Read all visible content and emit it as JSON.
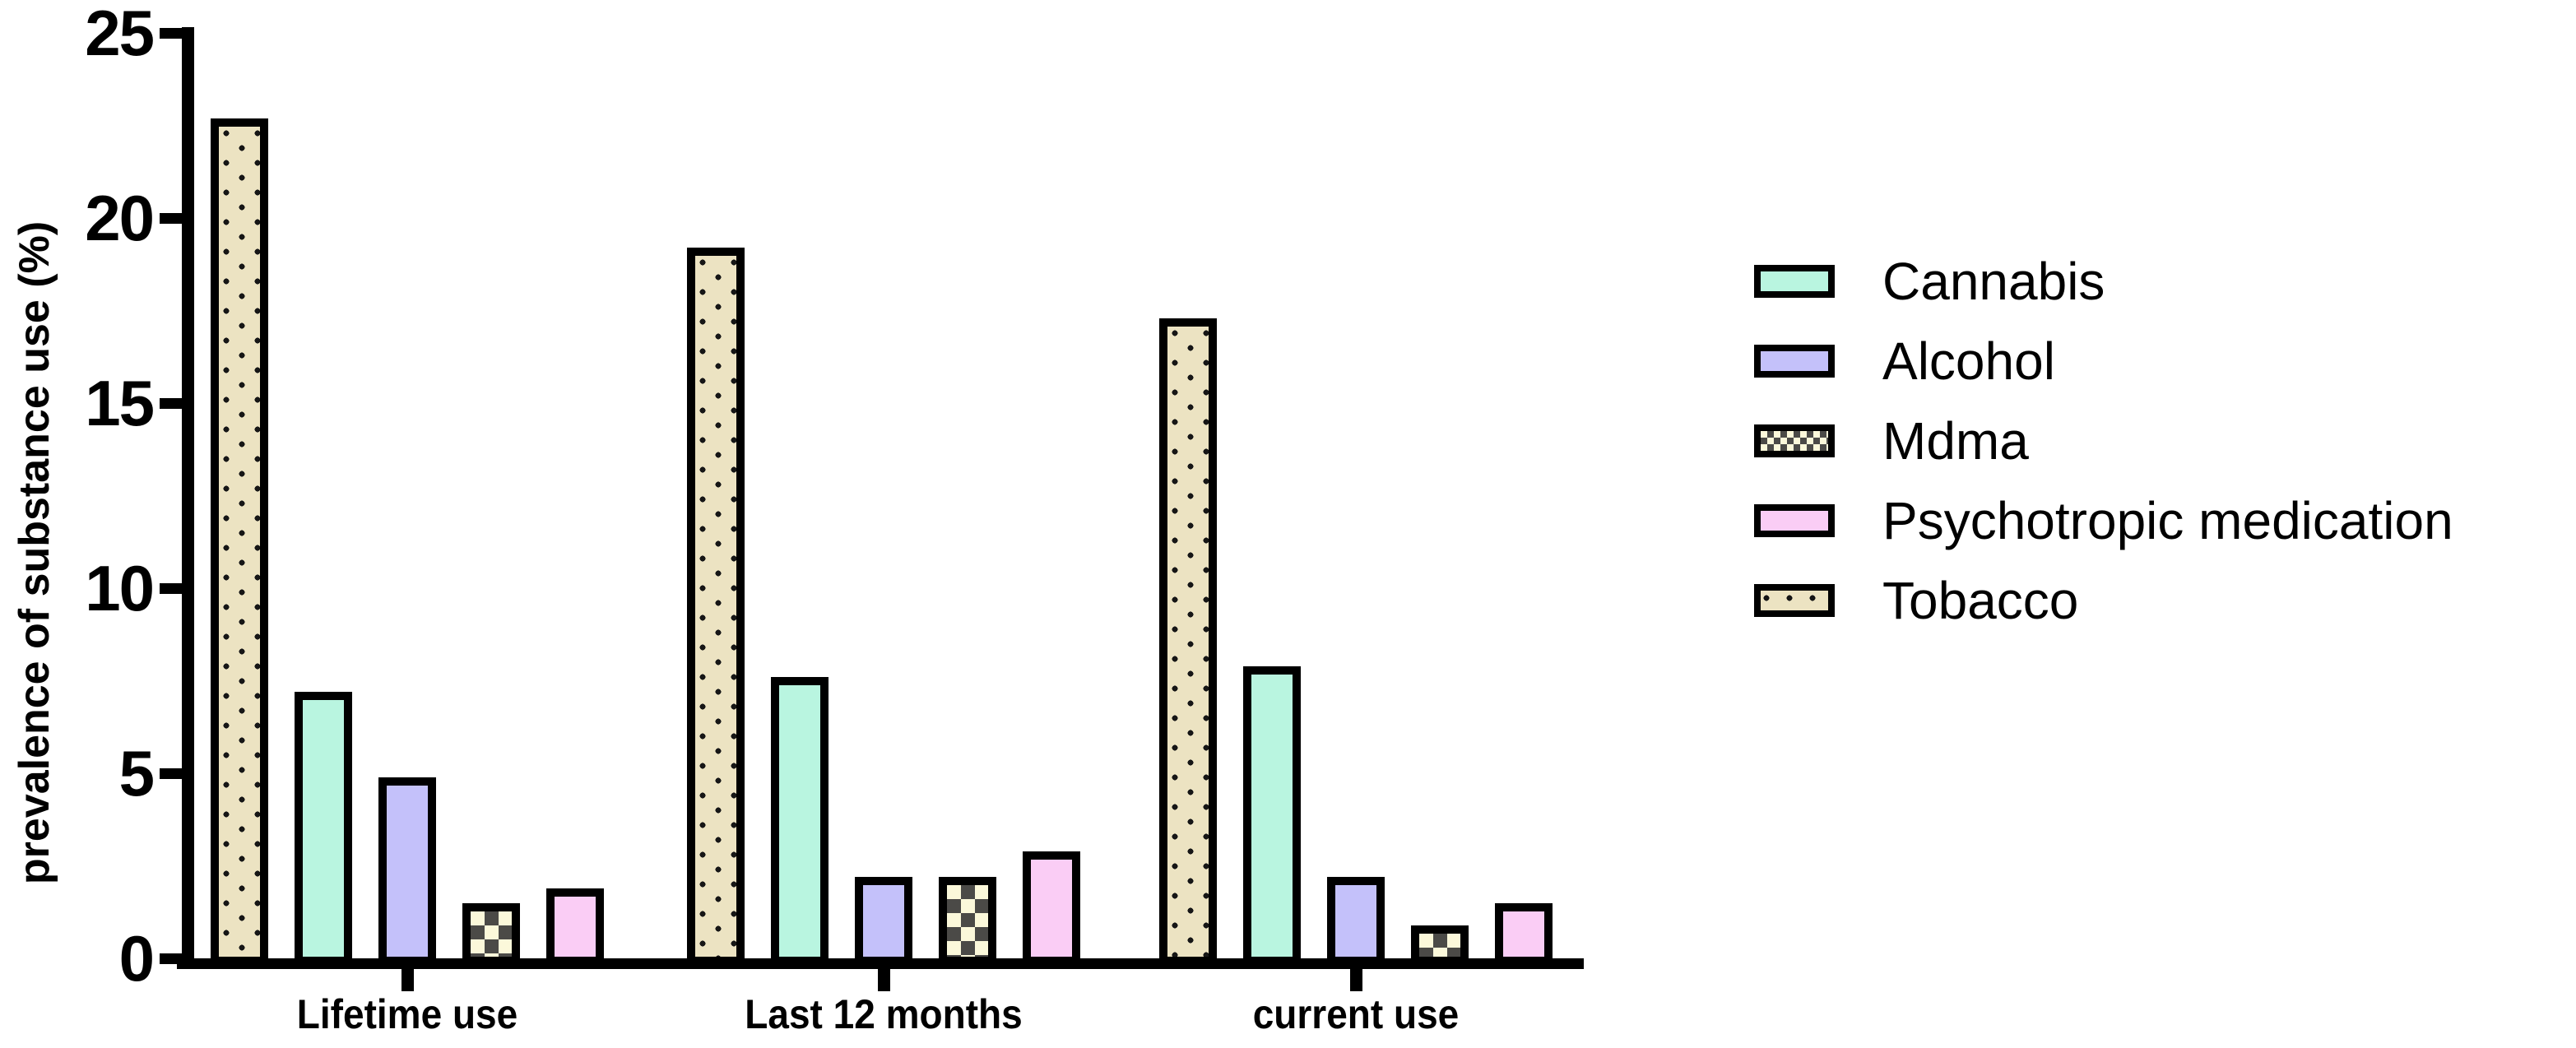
{
  "figure": {
    "background": "#ffffff",
    "text_color": "#000000",
    "axis_color": "#000000"
  },
  "chart_data": {
    "type": "bar",
    "title": "",
    "xlabel": "",
    "ylabel": "prevalence of substance use (%)",
    "ylim": [
      0,
      25
    ],
    "yticks": [
      "0",
      "5",
      "10",
      "15",
      "20",
      "25"
    ],
    "grid": false,
    "legend_position": "right",
    "categories": [
      "Lifetime use",
      "Last 12 months",
      "current use"
    ],
    "bar_order_per_group": [
      "Tobacco",
      "Cannabis",
      "Alcohol",
      "Mdma",
      "Psychotropic medication"
    ],
    "series": [
      {
        "name": "Cannabis",
        "values": [
          7.2,
          7.6,
          7.9
        ],
        "color": "#b9f5e0",
        "pattern": "solid",
        "pattern_color": "#000000"
      },
      {
        "name": "Alcohol",
        "values": [
          4.9,
          2.2,
          2.2
        ],
        "color": "#c4c1fa",
        "pattern": "solid",
        "pattern_color": "#000000"
      },
      {
        "name": "Mdma",
        "values": [
          1.5,
          2.2,
          0.9
        ],
        "color": "#fbf8da",
        "pattern": "checker",
        "pattern_color": "#4b4a47"
      },
      {
        "name": "Psychotropic medication",
        "values": [
          1.9,
          2.9,
          1.5
        ],
        "color": "#facdf5",
        "pattern": "solid",
        "pattern_color": "#000000"
      },
      {
        "name": "Tobacco",
        "values": [
          22.7,
          19.2,
          17.3
        ],
        "color": "#ece3c2",
        "pattern": "dots",
        "pattern_color": "#161616"
      }
    ]
  },
  "legend": {
    "items": [
      "Cannabis",
      "Alcohol",
      "Mdma",
      "Psychotropic medication",
      "Tobacco"
    ]
  }
}
